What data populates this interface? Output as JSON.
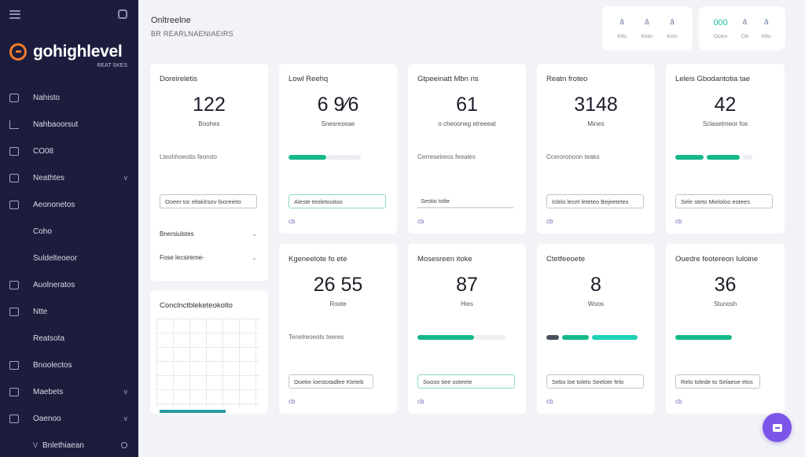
{
  "sidebar": {
    "logo_text": "gohighlevel",
    "logo_sub": "REAT SKES",
    "items": [
      {
        "label": "Nahisto",
        "icon": "dashboard-icon"
      },
      {
        "label": "Nahbaoorsut",
        "icon": "trend-icon"
      },
      {
        "label": "CO08",
        "icon": "contacts-icon"
      },
      {
        "label": "Neathtes",
        "icon": "calendar-icon",
        "chevron": "v"
      },
      {
        "label": "Aeononetos",
        "icon": "settings-icon"
      },
      {
        "label": "Coho",
        "sub": true
      },
      {
        "label": "Suldelteoeor",
        "sub": true
      },
      {
        "label": "Auolneratos",
        "icon": "automation-icon"
      },
      {
        "label": "Ntte",
        "icon": "notes-icon"
      },
      {
        "label": "Reatsota",
        "sub": true
      },
      {
        "label": "Bnoolectos",
        "icon": "reports-icon"
      },
      {
        "label": "Maebets",
        "icon": "marketing-icon",
        "chevron": "v"
      },
      {
        "label": "Oaenoo",
        "icon": "sites-icon",
        "chevron": "v"
      },
      {
        "label": "Bnlethiaean",
        "icon": "none",
        "arrow": "V"
      }
    ]
  },
  "header": {
    "title": "Onltreelne",
    "subtitle": "BR REARLNAENIAEIRS"
  },
  "stats_left": [
    {
      "icon": "ā",
      "caption": "Ktto"
    },
    {
      "icon": "ā",
      "caption": "Kclio"
    },
    {
      "icon": "ā",
      "caption": "Kcto"
    }
  ],
  "stats_right": [
    {
      "icon": "000",
      "caption": "Ooloo"
    },
    {
      "icon": "ā",
      "caption": "Cki"
    },
    {
      "icon": "ā",
      "caption": "Ktto"
    }
  ],
  "left_card": {
    "title": "Doreireletis",
    "value": "122",
    "unit": "Boohes",
    "caption": "Lteohhoeotis feoroto",
    "field": "Ooeer tor eltaklrsov fooreieto",
    "select1": "Bnersiulstes",
    "select2": "Fose lecsireme-"
  },
  "left_lower_card": {
    "title": "Conclnctbleketeokolto"
  },
  "cards_row1": [
    {
      "title": "Lowl Reehq",
      "value": "6 9⁄6",
      "unit": "Snesreseae",
      "caption": "",
      "field": "Aleste teoletooitoo",
      "link": "cb"
    },
    {
      "title": "Gtpeeinatt Mbn ris",
      "value": "61",
      "unit": "o  cheooneg etreeeat",
      "caption": "Cerreseireos feeales",
      "field": "Sestio tolte",
      "link": "cb"
    },
    {
      "title": "Reatn froteo",
      "value": "3148",
      "unit": "Mines",
      "caption": "Cceroronoon teaks",
      "field": "Iclelo lecet leteteo  Bejeetetes",
      "link": "cb"
    },
    {
      "title": "Leleis Gbodantotia tae",
      "value": "42",
      "unit": "Sclasetmeor fos",
      "caption": "",
      "field": "Sele steto Mieloloo eotees",
      "link": "cb"
    }
  ],
  "cards_row2": [
    {
      "title": "Kgeneelote fo ete",
      "value": "26 55",
      "unit": "Roote",
      "caption": "Tenelreoeots teeres",
      "field": "Ooeke loestotadlee Kteteb",
      "link": "cb"
    },
    {
      "title": "Mosesreen itoke",
      "value": "87",
      "unit": "Hies",
      "caption": "",
      "field": "Sooso tiee ooteete",
      "link": "cb"
    },
    {
      "title": "Ctetfeeoete",
      "value": "8",
      "unit": "Woos",
      "caption": "",
      "field": "Sebo loe tolelo Seelote felo",
      "link": "cb"
    },
    {
      "title": "Ouedre feotereon Iuloine",
      "value": "36",
      "unit": "Stunosh",
      "caption": "",
      "field": "Relo tolede to Selaeoe elos",
      "link": "cb"
    }
  ],
  "progress": {
    "lowl_reehq": 0.45,
    "kgeneelote": 0.6
  },
  "colors": {
    "sidebar_bg": "#1c1d3d",
    "accent_green": "#14b889",
    "accent_purple": "#7a55e8",
    "logo_orange": "#f47b2a"
  }
}
